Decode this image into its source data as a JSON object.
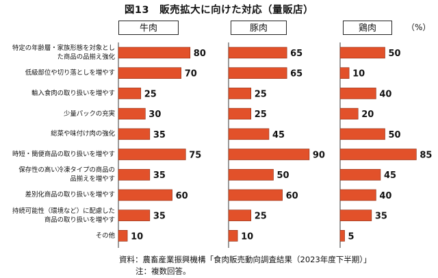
{
  "title": "図13　販売拡大に向けた対応（量販店）",
  "unit": "（%）",
  "source": "資料：農畜産業振興機構「食肉販売動向調査結果（2023年度下半期）」",
  "note": "注：複数回答。",
  "colors": {
    "bar": "#e2512a",
    "bar_stroke": "#8a2a10",
    "axis": "#333333"
  },
  "chart_data": {
    "type": "bar",
    "orientation": "horizontal",
    "categories": [
      "特定の年齢層・家族形態を対象とした商品の品揃え強化",
      "低級部位や切り落としを増やす",
      "輸入食肉の取り扱いを増やす",
      "少量パックの充実",
      "総菜や味付け肉の強化",
      "時短・簡便商品の取り扱いを増やす",
      "保存性の高い冷凍タイプの商品の品揃えを増やす",
      "差別化商品の取り扱いを増やす",
      "持続可能性（環境など）に配慮した商品の取り扱いを増やす",
      "その他"
    ],
    "category_lines": [
      [
        "特定の年齢層・家族形態を対象とし",
        "た商品の品揃え強化"
      ],
      [
        "低級部位や切り落としを増やす"
      ],
      [
        "輸入食肉の取り扱いを増やす"
      ],
      [
        "少量パックの充実"
      ],
      [
        "総菜や味付け肉の強化"
      ],
      [
        "時短・簡便商品の取り扱いを増やす"
      ],
      [
        "保存性の高い冷凍タイプの商品の",
        "品揃えを増やす"
      ],
      [
        "差別化商品の取り扱いを増やす"
      ],
      [
        "持続可能性（環境など）に配慮した",
        "商品の取り扱いを増やす"
      ],
      [
        "その他"
      ]
    ],
    "series": [
      {
        "name": "牛肉",
        "values": [
          80,
          70,
          25,
          30,
          35,
          75,
          35,
          60,
          35,
          10
        ]
      },
      {
        "name": "豚肉",
        "values": [
          65,
          65,
          25,
          25,
          45,
          90,
          50,
          60,
          25,
          10
        ]
      },
      {
        "name": "鶏肉",
        "values": [
          50,
          10,
          40,
          20,
          50,
          85,
          45,
          40,
          35,
          5
        ]
      }
    ],
    "xlim": [
      0,
      100
    ],
    "grid": false,
    "legend": "none"
  }
}
